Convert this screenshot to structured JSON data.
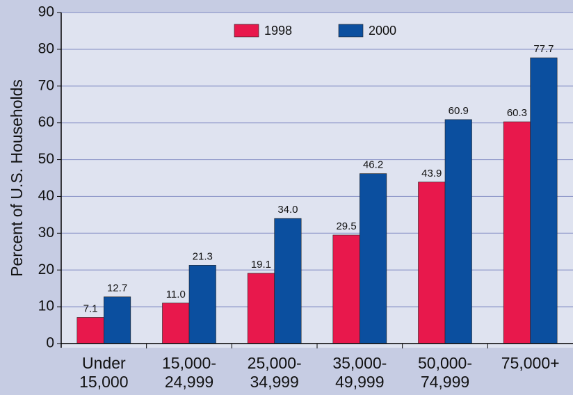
{
  "chart_data": {
    "type": "bar",
    "y_label": "Percent of U.S. Households",
    "categories": [
      "Under 15,000",
      "15,000- 24,999",
      "25,000- 34,999",
      "35,000- 49,999",
      "50,000- 74,999",
      "75,000+"
    ],
    "series": [
      {
        "name": "1998",
        "color": "#e8184c",
        "values": [
          7.1,
          11.0,
          19.1,
          29.5,
          43.9,
          60.3
        ],
        "value_labels": [
          "7.1",
          "11.0",
          "19.1",
          "29.5",
          "43.9",
          "60.3"
        ]
      },
      {
        "name": "2000",
        "color": "#0b4f9f",
        "values": [
          12.7,
          21.3,
          34.0,
          46.2,
          60.9,
          77.7
        ],
        "value_labels": [
          "12.7",
          "21.3",
          "34.0",
          "46.2",
          "60.9",
          "77.7"
        ]
      }
    ],
    "ylim": [
      0,
      90
    ],
    "yticks": [
      0,
      10,
      20,
      30,
      40,
      50,
      60,
      70,
      80,
      90
    ],
    "grid": true,
    "legend": "top"
  }
}
